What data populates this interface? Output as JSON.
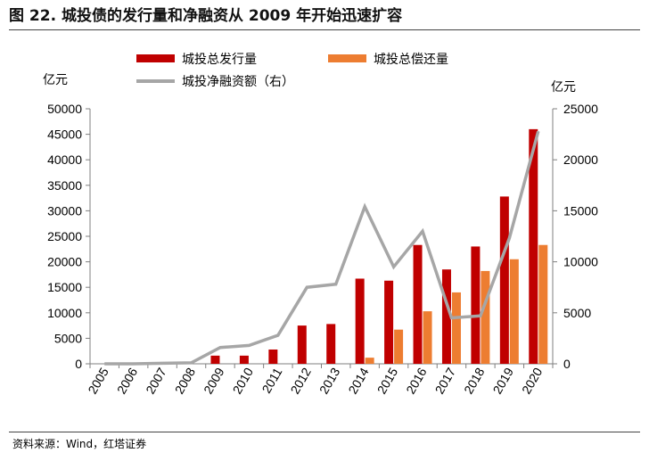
{
  "title": "图 22. 城投债的发行量和净融资从 2009 年开始迅速扩容",
  "source": "资料来源：Wind，红塔证券",
  "chart_data": {
    "type": "bar",
    "categories": [
      "2005",
      "2006",
      "2007",
      "2008",
      "2009",
      "2010",
      "2011",
      "2012",
      "2013",
      "2014",
      "2015",
      "2016",
      "2017",
      "2018",
      "2019",
      "2020"
    ],
    "series": [
      {
        "name": "城投总发行量",
        "type": "bar",
        "axis": "left",
        "color": "#C00000",
        "values": [
          0,
          0,
          100,
          100,
          1600,
          1600,
          2800,
          7500,
          7800,
          16700,
          16300,
          23300,
          18500,
          23000,
          32800,
          46000
        ]
      },
      {
        "name": "城投总偿还量",
        "type": "bar",
        "axis": "left",
        "color": "#ED7D31",
        "values": [
          0,
          0,
          0,
          0,
          0,
          0,
          0,
          0,
          0,
          1200,
          6700,
          10300,
          14000,
          18200,
          20500,
          23300
        ]
      },
      {
        "name": "城投净融资额（右）",
        "type": "line",
        "axis": "right",
        "color": "#A6A6A6",
        "values": [
          0,
          0,
          50,
          100,
          1600,
          1800,
          2800,
          7500,
          7800,
          15400,
          9500,
          13000,
          4500,
          4700,
          12300,
          22800
        ]
      }
    ],
    "ylabel_left": "亿元",
    "ylabel_right": "亿元",
    "ylim_left": [
      0,
      50000
    ],
    "ylim_right": [
      0,
      25000
    ],
    "yticks_left": [
      "0",
      "5000",
      "10000",
      "15000",
      "20000",
      "25000",
      "30000",
      "35000",
      "40000",
      "45000",
      "50000"
    ],
    "yticks_right": [
      "0",
      "5000",
      "10000",
      "15000",
      "20000",
      "25000"
    ],
    "legend_position": "top",
    "grid": false
  }
}
